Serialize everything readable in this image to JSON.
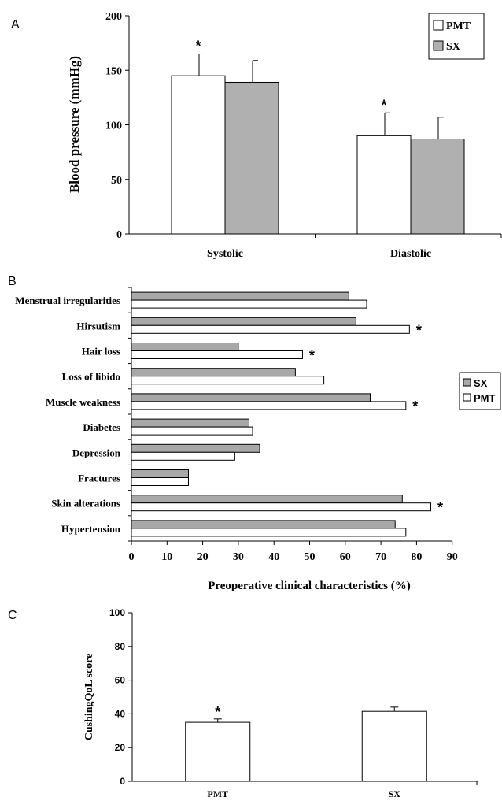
{
  "figure": {
    "background": "#ffffff"
  },
  "chart_data": [
    {
      "panel_label": "A",
      "type": "bar",
      "orientation": "vertical",
      "categories": [
        "Systolic",
        "Diastolic"
      ],
      "ylabel": "Blood pressure (mmHg)",
      "xlabel": "",
      "ylim": [
        0,
        200
      ],
      "yticks": [
        "0",
        "50",
        "100",
        "150",
        "200"
      ],
      "legend_position": "top-right",
      "series": [
        {
          "name": "PMT",
          "color": "#ffffff",
          "values": [
            145,
            90
          ],
          "errors": [
            20,
            21
          ]
        },
        {
          "name": "SX",
          "color": "#b0b0b0",
          "values": [
            139,
            87
          ],
          "errors": [
            20,
            20
          ]
        }
      ],
      "annotations": [
        {
          "text": "*",
          "series": "PMT",
          "category": "Systolic"
        },
        {
          "text": "*",
          "series": "PMT",
          "category": "Diastolic"
        }
      ]
    },
    {
      "panel_label": "B",
      "type": "bar",
      "orientation": "horizontal",
      "categories": [
        "Menstrual irregularities",
        "Hirsutism",
        "Hair loss",
        "Loss of libido",
        "Muscle weakness",
        "Diabetes",
        "Depression",
        "Fractures",
        "Skin alterations",
        "Hypertension"
      ],
      "xlabel": "Preoperative clinical characteristics (%)",
      "ylabel": "",
      "xlim": [
        0,
        90
      ],
      "xticks": [
        "0",
        "10",
        "20",
        "30",
        "40",
        "50",
        "60",
        "70",
        "80",
        "90"
      ],
      "legend_position": "right",
      "series": [
        {
          "name": "SX",
          "color": "#a8a8a8",
          "values": [
            61,
            63,
            30,
            46,
            67,
            33,
            36,
            16,
            76,
            74
          ]
        },
        {
          "name": "PMT",
          "color": "#ffffff",
          "values": [
            66,
            78,
            48,
            54,
            77,
            34,
            29,
            16,
            84,
            77
          ]
        }
      ],
      "annotations": [
        {
          "text": "*",
          "category": "Hirsutism"
        },
        {
          "text": "*",
          "category": "Hair loss"
        },
        {
          "text": "*",
          "category": "Muscle weakness"
        },
        {
          "text": "*",
          "category": "Skin alterations"
        }
      ]
    },
    {
      "panel_label": "C",
      "type": "bar",
      "orientation": "vertical",
      "categories": [
        "PMT",
        "SX"
      ],
      "ylabel": "CushingQoL score",
      "xlabel": "",
      "ylim": [
        0,
        100
      ],
      "yticks": [
        "0",
        "20",
        "40",
        "60",
        "80",
        "100"
      ],
      "series": [
        {
          "name": "",
          "color": "#ffffff",
          "values": [
            35,
            41.5
          ],
          "errors": [
            2,
            2.5
          ]
        }
      ],
      "annotations": [
        {
          "text": "*",
          "category": "PMT"
        }
      ]
    }
  ]
}
